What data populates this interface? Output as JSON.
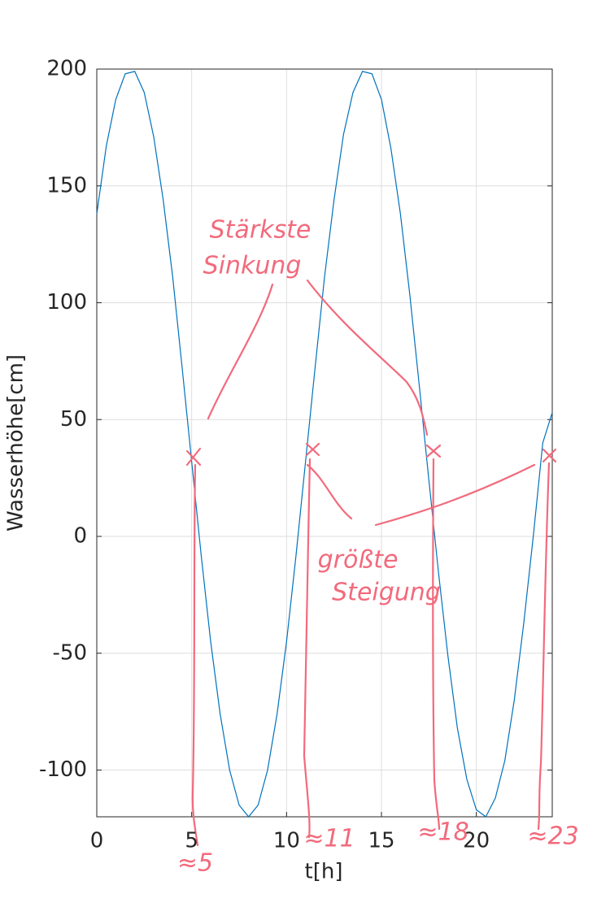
{
  "chart_data": {
    "type": "line",
    "xlabel": "t[h]",
    "ylabel": "Wasserhöhe[cm]",
    "x": [
      0,
      0.5,
      1,
      1.5,
      2,
      2.5,
      3,
      3.5,
      4,
      4.5,
      5,
      5.5,
      6,
      6.5,
      7,
      7.5,
      8,
      8.5,
      9,
      9.5,
      10,
      10.5,
      11,
      11.5,
      12,
      12.5,
      13,
      13.5,
      14,
      14.5,
      15,
      15.5,
      16,
      16.5,
      17,
      17.5,
      18,
      18.5,
      19,
      19.5,
      20,
      20.5,
      21,
      21.5,
      22,
      22.5,
      23,
      23.5,
      24
    ],
    "series": [
      {
        "name": "Wasserhöhe",
        "color": "#0072bd",
        "values": [
          138,
          167,
          187,
          198,
          199,
          190,
          171,
          144,
          111,
          72,
          32,
          -8,
          -45,
          -76,
          -100,
          -115,
          -120,
          -115,
          -100,
          -76,
          -45,
          -8,
          32,
          72,
          111,
          144,
          172,
          190,
          199,
          198,
          187,
          166,
          138,
          103,
          64,
          24,
          -15,
          -51,
          -82,
          -104,
          -117,
          -120,
          -112,
          -96,
          -70,
          -37,
          0,
          40,
          53
        ]
      }
    ],
    "xlim": [
      0,
      24
    ],
    "xticks": [
      0,
      5,
      10,
      15,
      20
    ],
    "ylim": [
      -120,
      200
    ],
    "yticks": [
      -100,
      -50,
      0,
      50,
      100,
      150,
      200
    ],
    "grid": true,
    "annotations": [
      "Stärkste",
      "Sinkung",
      "größte",
      "Steigung",
      "≈5",
      "≈11",
      "≈18",
      "≈23"
    ]
  }
}
